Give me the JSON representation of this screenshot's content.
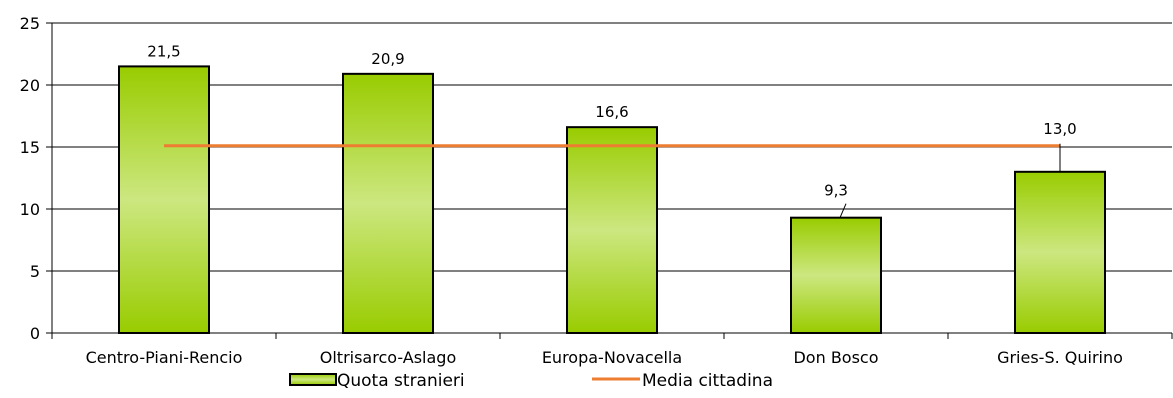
{
  "chart_data": {
    "type": "bar",
    "title": "",
    "xlabel": "",
    "ylabel": "",
    "categories": [
      "Centro-Piani-Rencio",
      "Oltrisarco-Aslago",
      "Europa-Novacella",
      "Don Bosco",
      "Gries-S. Quirino"
    ],
    "series": [
      {
        "name": "Quota stranieri",
        "type": "bar",
        "values": [
          21.5,
          20.9,
          16.6,
          9.3,
          13.0
        ],
        "labels": [
          "21,5",
          "20,9",
          "16,6",
          "9,3",
          "13,0"
        ],
        "color": "#99cc00"
      },
      {
        "name": "Media cittadina",
        "type": "line",
        "values": [
          15.1,
          15.1,
          15.1,
          15.1,
          15.1
        ],
        "color": "#ed7d31"
      }
    ],
    "ylim": [
      0,
      25
    ],
    "yticks": [
      0,
      5,
      10,
      15,
      20,
      25
    ],
    "grid": true,
    "legend_position": "bottom"
  }
}
